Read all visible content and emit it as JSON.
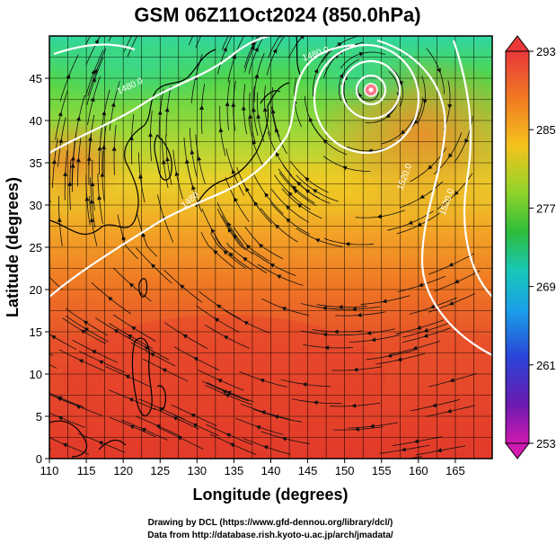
{
  "title": "GSM 06Z11Oct2024 (850.0hPa)",
  "xlabel": "Longitude (degrees)",
  "ylabel": "Latitude  (degrees)",
  "credits": [
    "Drawing by DCL (https://www.gfd-dennou.org/library/dcl/)",
    "Data from http://database.rish.kyoto-u.ac.jp/arch/jmadata/"
  ],
  "map": {
    "xlim": [
      110,
      170
    ],
    "ylim": [
      0,
      50
    ],
    "xticks": [
      "110",
      "115",
      "120",
      "125",
      "130",
      "135",
      "140",
      "145",
      "150",
      "155",
      "160",
      "165"
    ],
    "yticks": [
      "0",
      "5",
      "10",
      "15",
      "20",
      "25",
      "30",
      "35",
      "40",
      "45"
    ],
    "field": "temperature",
    "streamlines": "wind",
    "contour_field": "geopotential height"
  },
  "colorbar": {
    "ticks": [
      "293",
      "285",
      "277",
      "269",
      "261",
      "253"
    ],
    "colors_top_to_bottom": [
      "#e8383a",
      "#f07a22",
      "#f5c21c",
      "#8fd42a",
      "#2ebd3a",
      "#18c7b8",
      "#1aa0e8",
      "#2a44d8",
      "#6a1ab0",
      "#d01ab0"
    ]
  },
  "contour_labels": [
    "1480.0",
    "1480.0",
    "1520.0",
    "1520.0",
    "1480"
  ],
  "colors": {
    "hot": "#e63c2a",
    "warm": "#f08a28",
    "mild": "#f5c71e",
    "cool": "#69d23a",
    "cold": "#2fd6a2",
    "coastline": "#000000",
    "contour": "#ffffff",
    "grid": "#000000"
  }
}
